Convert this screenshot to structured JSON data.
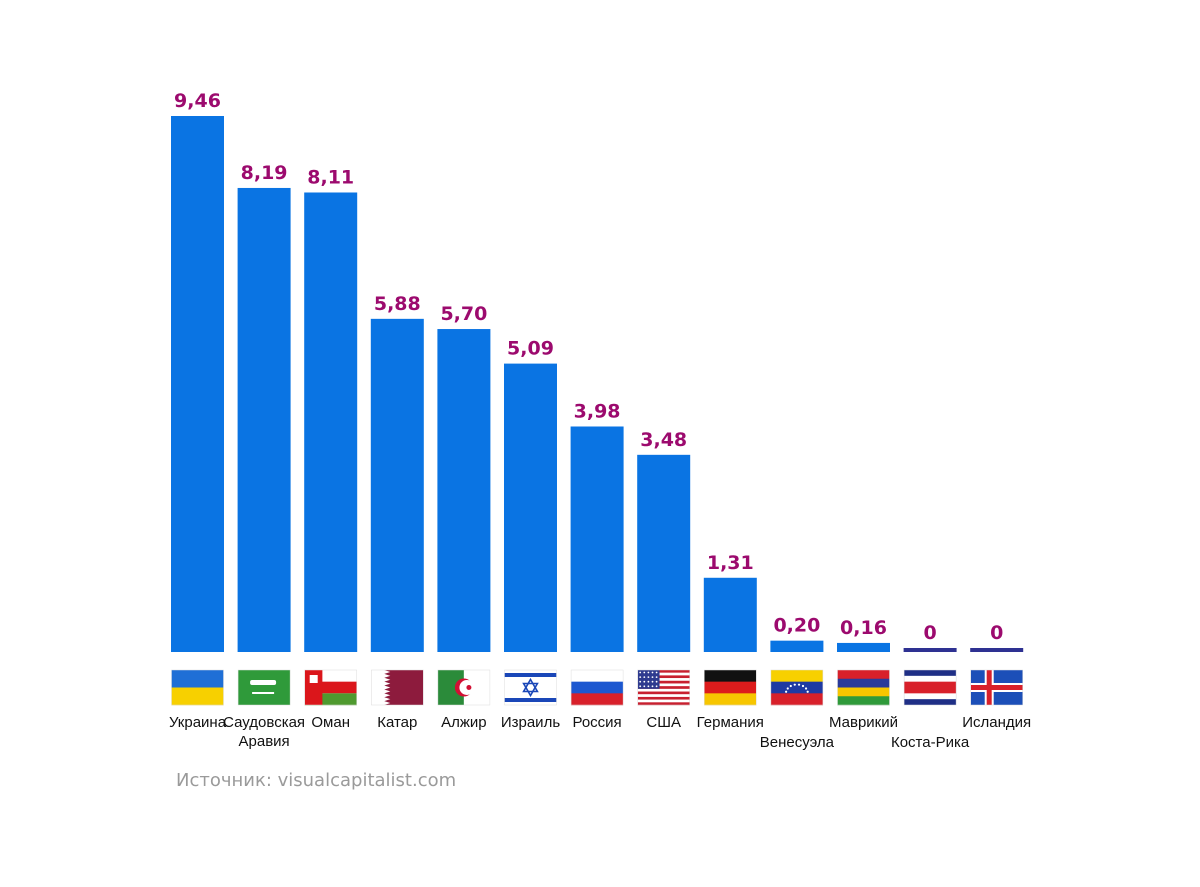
{
  "chart_data": {
    "type": "bar",
    "title": "",
    "xlabel": "",
    "ylabel": "",
    "ylim": [
      0,
      9.46
    ],
    "grid": false,
    "categories": [
      "Украина",
      "Саудовская Аравия",
      "Оман",
      "Катар",
      "Алжир",
      "Израиль",
      "Россия",
      "США",
      "Германия",
      "Венесуэла",
      "Маврикий",
      "Коста-Рика",
      "Исландия"
    ],
    "label_lines": [
      [
        "Украина"
      ],
      [
        "Саудовская",
        "Аравия"
      ],
      [
        "Оман"
      ],
      [
        "Катар"
      ],
      [
        "Алжир"
      ],
      [
        "Израиль"
      ],
      [
        "Россия"
      ],
      [
        "США"
      ],
      [
        "Германия"
      ],
      [
        "Венесуэла"
      ],
      [
        "Маврикий"
      ],
      [
        "Коста-Рика"
      ],
      [
        "Исландия"
      ]
    ],
    "values": [
      9.46,
      8.19,
      8.11,
      5.88,
      5.7,
      5.09,
      3.98,
      3.48,
      1.31,
      0.2,
      0.16,
      0,
      0
    ],
    "value_labels": [
      "9,46",
      "8,19",
      "8,11",
      "5,88",
      "5,70",
      "5,09",
      "3,98",
      "3,48",
      "1,31",
      "0,20",
      "0,16",
      "0",
      "0"
    ],
    "flags": [
      "ukraine-flag-icon",
      "saudi-arabia-flag-icon",
      "oman-flag-icon",
      "qatar-flag-icon",
      "algeria-flag-icon",
      "israel-flag-icon",
      "russia-flag-icon",
      "usa-flag-icon",
      "germany-flag-icon",
      "venezuela-flag-icon",
      "mauritius-flag-icon",
      "costa-rica-flag-icon",
      "iceland-flag-icon"
    ]
  },
  "colors": {
    "bar": "#0a74e3",
    "zero_bar": "#2e3192",
    "value_label": "#9c0a6e",
    "axis": "#111111"
  },
  "source": "Источник: visualcapitalist.com"
}
